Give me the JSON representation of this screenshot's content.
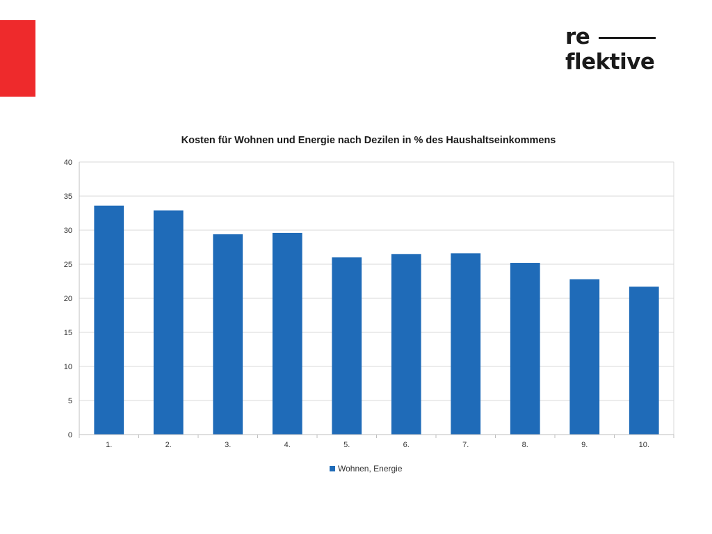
{
  "brand": {
    "logo_line1": "re",
    "logo_line2": "flektive",
    "accent_color": "#ee2a2c"
  },
  "chart_data": {
    "type": "bar",
    "title": "Kosten für Wohnen und Energie nach Dezilen in % des Haushaltseinkommens",
    "categories": [
      "1.",
      "2.",
      "3.",
      "4.",
      "5.",
      "6.",
      "7.",
      "8.",
      "9.",
      "10."
    ],
    "series": [
      {
        "name": "Wohnen, Energie",
        "color": "#1f6bb8",
        "values": [
          33.6,
          32.9,
          29.4,
          29.6,
          26.0,
          26.5,
          26.6,
          25.2,
          22.8,
          21.7
        ]
      }
    ],
    "ylim": [
      0,
      40
    ],
    "yticks": [
      0,
      5,
      10,
      15,
      20,
      25,
      30,
      35,
      40
    ],
    "grid": true,
    "legend": "bottom"
  }
}
